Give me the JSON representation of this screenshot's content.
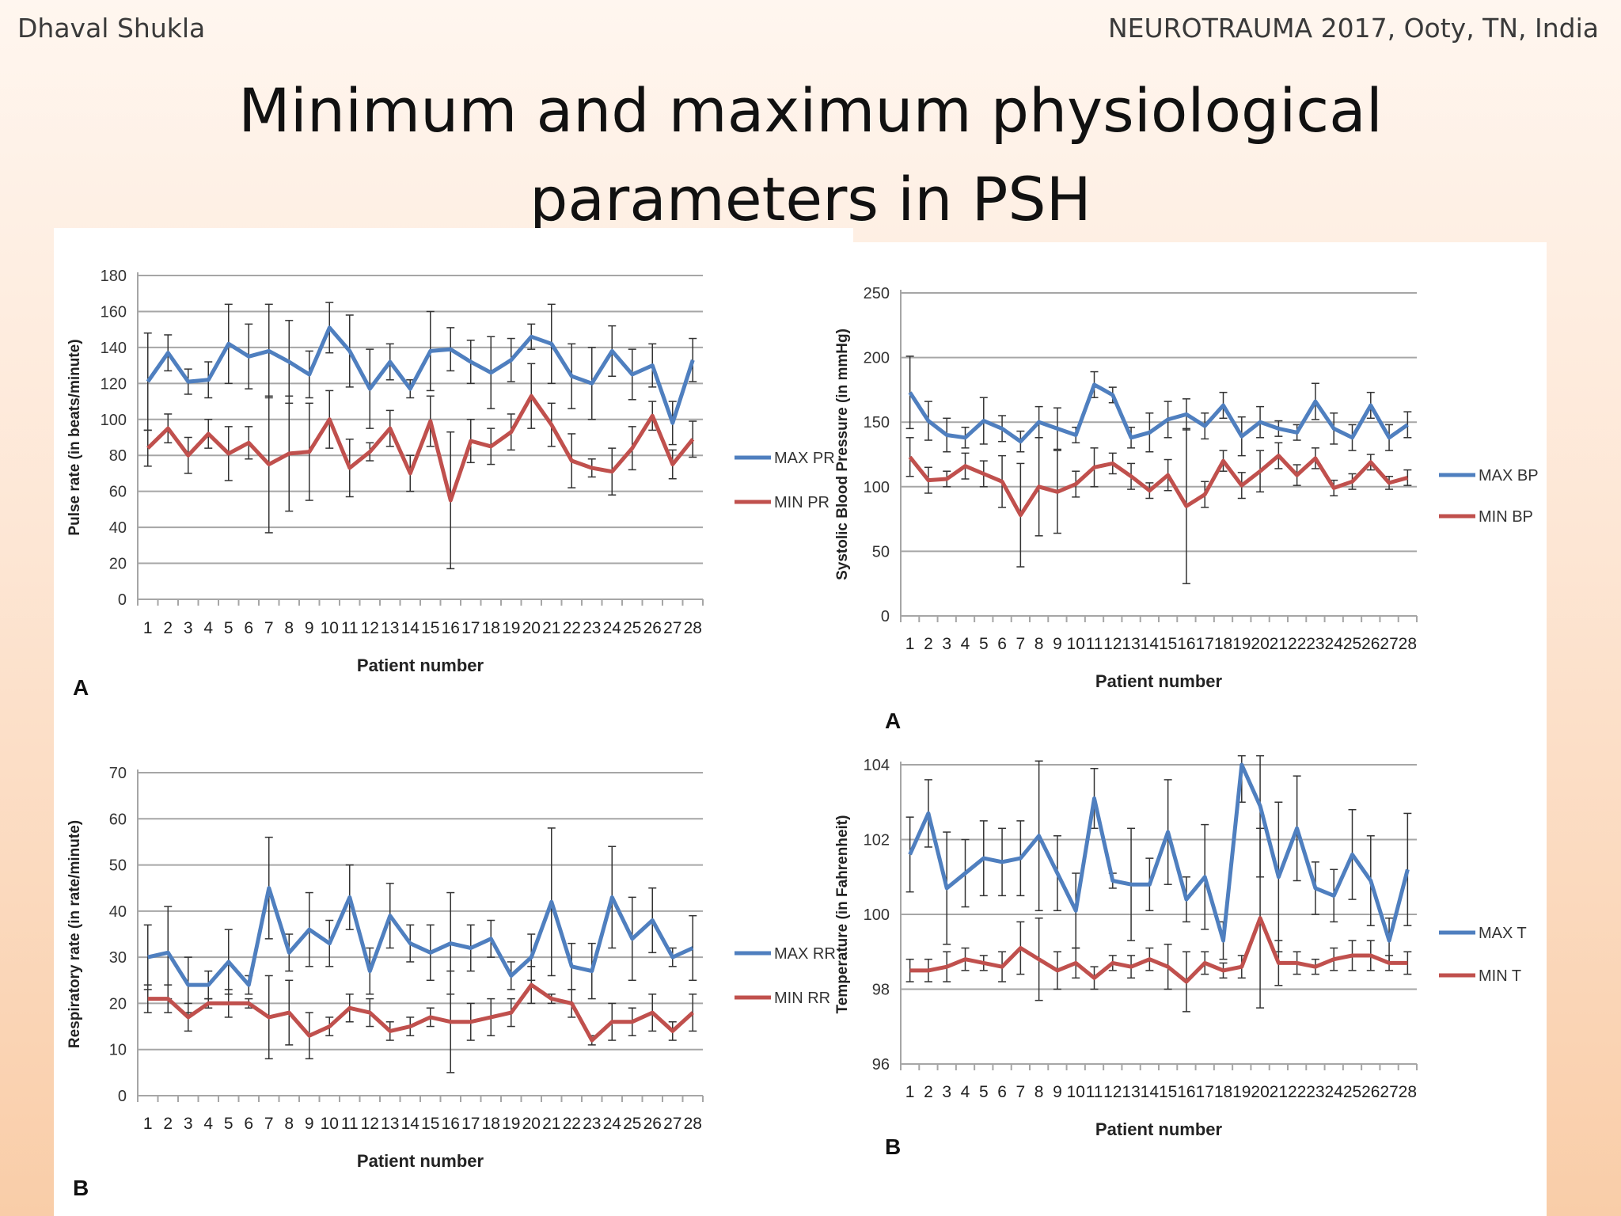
{
  "header": {
    "left": "Dhaval Shukla",
    "right": "NEUROTRAUMA 2017, Ooty, TN, India",
    "title_line1": "Minimum and maximum physiological",
    "title_line2": "parameters in PSH"
  },
  "colors": {
    "max_series": "#4f7fbf",
    "min_series": "#c0504d",
    "grid": "#a6a6a6",
    "error_bar": "#333333"
  },
  "chart_data": [
    {
      "type": "line",
      "panel_label": "A",
      "xlabel": "Patient number",
      "ylabel": "Pulse rate (in beats/minute)",
      "x": [
        1,
        2,
        3,
        4,
        5,
        6,
        7,
        8,
        9,
        10,
        11,
        12,
        13,
        14,
        15,
        16,
        17,
        18,
        19,
        20,
        21,
        22,
        23,
        24,
        25,
        26,
        27,
        28
      ],
      "ylim": [
        0,
        180
      ],
      "yticks": [
        0,
        20,
        40,
        60,
        80,
        100,
        120,
        140,
        160,
        180
      ],
      "grid": true,
      "legend_position": "right",
      "series": [
        {
          "name": "MAX PR",
          "values": [
            121,
            137,
            121,
            122,
            142,
            135,
            138,
            132,
            125,
            151,
            138,
            117,
            132,
            117,
            138,
            139,
            132,
            126,
            133,
            146,
            142,
            124,
            120,
            138,
            125,
            130,
            98,
            133
          ],
          "error": [
            27,
            10,
            7,
            10,
            22,
            18,
            26,
            23,
            13,
            14,
            20,
            22,
            10,
            5,
            22,
            12,
            12,
            20,
            12,
            7,
            22,
            18,
            20,
            14,
            14,
            12,
            12,
            12
          ]
        },
        {
          "name": "MIN PR",
          "values": [
            84,
            95,
            80,
            92,
            81,
            87,
            75,
            81,
            82,
            100,
            73,
            82,
            95,
            70,
            99,
            55,
            88,
            85,
            93,
            113,
            97,
            77,
            73,
            71,
            84,
            102,
            75,
            89
          ],
          "error": [
            10,
            8,
            10,
            8,
            15,
            9,
            38,
            32,
            27,
            16,
            16,
            5,
            10,
            10,
            14,
            38,
            12,
            10,
            10,
            18,
            12,
            15,
            5,
            13,
            12,
            8,
            8,
            10
          ]
        }
      ]
    },
    {
      "type": "line",
      "panel_label": "A",
      "xlabel": "Patient number",
      "ylabel": "Systolic Blood Pressure (in mmHg)",
      "x": [
        1,
        2,
        3,
        4,
        5,
        6,
        7,
        8,
        9,
        10,
        11,
        12,
        13,
        14,
        15,
        16,
        17,
        18,
        19,
        20,
        21,
        22,
        23,
        24,
        25,
        26,
        27,
        28
      ],
      "ylim": [
        0,
        250
      ],
      "yticks": [
        0,
        50,
        100,
        150,
        200,
        250
      ],
      "grid": true,
      "legend_position": "right",
      "series": [
        {
          "name": "MAX BP",
          "values": [
            173,
            151,
            140,
            138,
            151,
            145,
            135,
            150,
            145,
            140,
            179,
            171,
            138,
            142,
            152,
            156,
            147,
            163,
            139,
            150,
            145,
            142,
            166,
            145,
            138,
            163,
            138,
            148
          ],
          "error": [
            28,
            15,
            13,
            8,
            18,
            10,
            8,
            12,
            16,
            6,
            10,
            6,
            8,
            15,
            14,
            12,
            10,
            10,
            15,
            12,
            6,
            6,
            14,
            12,
            10,
            10,
            10,
            10
          ]
        },
        {
          "name": "MIN BP",
          "values": [
            123,
            105,
            106,
            116,
            110,
            104,
            78,
            100,
            96,
            102,
            115,
            118,
            108,
            97,
            109,
            85,
            94,
            120,
            101,
            112,
            124,
            109,
            122,
            99,
            104,
            119,
            103,
            107
          ],
          "error": [
            15,
            10,
            6,
            10,
            10,
            20,
            40,
            38,
            32,
            10,
            15,
            8,
            10,
            6,
            12,
            60,
            10,
            8,
            10,
            16,
            10,
            8,
            8,
            6,
            6,
            6,
            5,
            6
          ]
        }
      ]
    },
    {
      "type": "line",
      "panel_label": "B",
      "xlabel": "Patient number",
      "ylabel": "Respiratory rate (in rate/minute)",
      "x": [
        1,
        2,
        3,
        4,
        5,
        6,
        7,
        8,
        9,
        10,
        11,
        12,
        13,
        14,
        15,
        16,
        17,
        18,
        19,
        20,
        21,
        22,
        23,
        24,
        25,
        26,
        27,
        28
      ],
      "ylim": [
        0,
        70
      ],
      "yticks": [
        0,
        10,
        20,
        30,
        40,
        50,
        60,
        70
      ],
      "grid": true,
      "legend_position": "right",
      "series": [
        {
          "name": "MAX RR",
          "values": [
            30,
            31,
            24,
            24,
            29,
            24,
            45,
            31,
            36,
            33,
            43,
            27,
            39,
            33,
            31,
            33,
            32,
            34,
            26,
            30,
            42,
            28,
            27,
            43,
            34,
            38,
            30,
            32
          ],
          "error": [
            7,
            10,
            6,
            3,
            7,
            2,
            11,
            4,
            8,
            5,
            7,
            5,
            7,
            4,
            6,
            11,
            5,
            4,
            3,
            5,
            16,
            5,
            6,
            11,
            9,
            7,
            2,
            7
          ]
        },
        {
          "name": "MIN RR",
          "values": [
            21,
            21,
            17,
            20,
            20,
            20,
            17,
            18,
            13,
            15,
            19,
            18,
            14,
            15,
            17,
            16,
            16,
            17,
            18,
            24,
            21,
            20,
            12,
            16,
            16,
            18,
            14,
            18
          ],
          "error": [
            3,
            3,
            3,
            1,
            3,
            1,
            9,
            7,
            5,
            2,
            3,
            3,
            2,
            2,
            2,
            11,
            4,
            4,
            3,
            4,
            1,
            3,
            1,
            4,
            3,
            4,
            2,
            4
          ]
        }
      ]
    },
    {
      "type": "line",
      "panel_label": "B",
      "xlabel": "Patient number",
      "ylabel": "Temperature (in Fahrenheit)",
      "x": [
        1,
        2,
        3,
        4,
        5,
        6,
        7,
        8,
        9,
        10,
        11,
        12,
        13,
        14,
        15,
        16,
        17,
        18,
        19,
        20,
        21,
        22,
        23,
        24,
        25,
        26,
        27,
        28
      ],
      "ylim": [
        96,
        104
      ],
      "yticks": [
        96,
        98,
        100,
        102,
        104
      ],
      "grid": true,
      "legend_position": "right",
      "series": [
        {
          "name": "MAX T",
          "values": [
            101.6,
            102.7,
            100.7,
            101.1,
            101.5,
            101.4,
            101.5,
            102.1,
            101.1,
            100.1,
            103.1,
            100.9,
            100.8,
            100.8,
            102.2,
            100.4,
            101.0,
            99.3,
            104.0,
            102.9,
            101.0,
            102.3,
            100.7,
            100.5,
            101.6,
            100.9,
            99.3,
            101.2
          ],
          "error": [
            1.0,
            0.9,
            1.5,
            0.9,
            1.0,
            0.9,
            1.0,
            2.0,
            1.0,
            1.0,
            0.8,
            0.2,
            1.5,
            0.7,
            1.4,
            0.6,
            1.4,
            0.5,
            1.0,
            1.9,
            2.0,
            1.4,
            0.7,
            0.7,
            1.2,
            1.2,
            0.6,
            1.5
          ]
        },
        {
          "name": "MIN T",
          "values": [
            98.5,
            98.5,
            98.6,
            98.8,
            98.7,
            98.6,
            99.1,
            98.8,
            98.5,
            98.7,
            98.3,
            98.7,
            98.6,
            98.8,
            98.6,
            98.2,
            98.7,
            98.5,
            98.6,
            99.9,
            98.7,
            98.7,
            98.6,
            98.8,
            98.9,
            98.9,
            98.7,
            98.7
          ],
          "error": [
            0.3,
            0.3,
            0.4,
            0.3,
            0.2,
            0.4,
            0.7,
            1.1,
            0.5,
            0.4,
            0.3,
            0.2,
            0.3,
            0.3,
            0.6,
            0.8,
            0.3,
            0.2,
            0.3,
            2.4,
            0.6,
            0.3,
            0.2,
            0.3,
            0.4,
            0.4,
            0.2,
            0.3
          ]
        }
      ]
    }
  ]
}
